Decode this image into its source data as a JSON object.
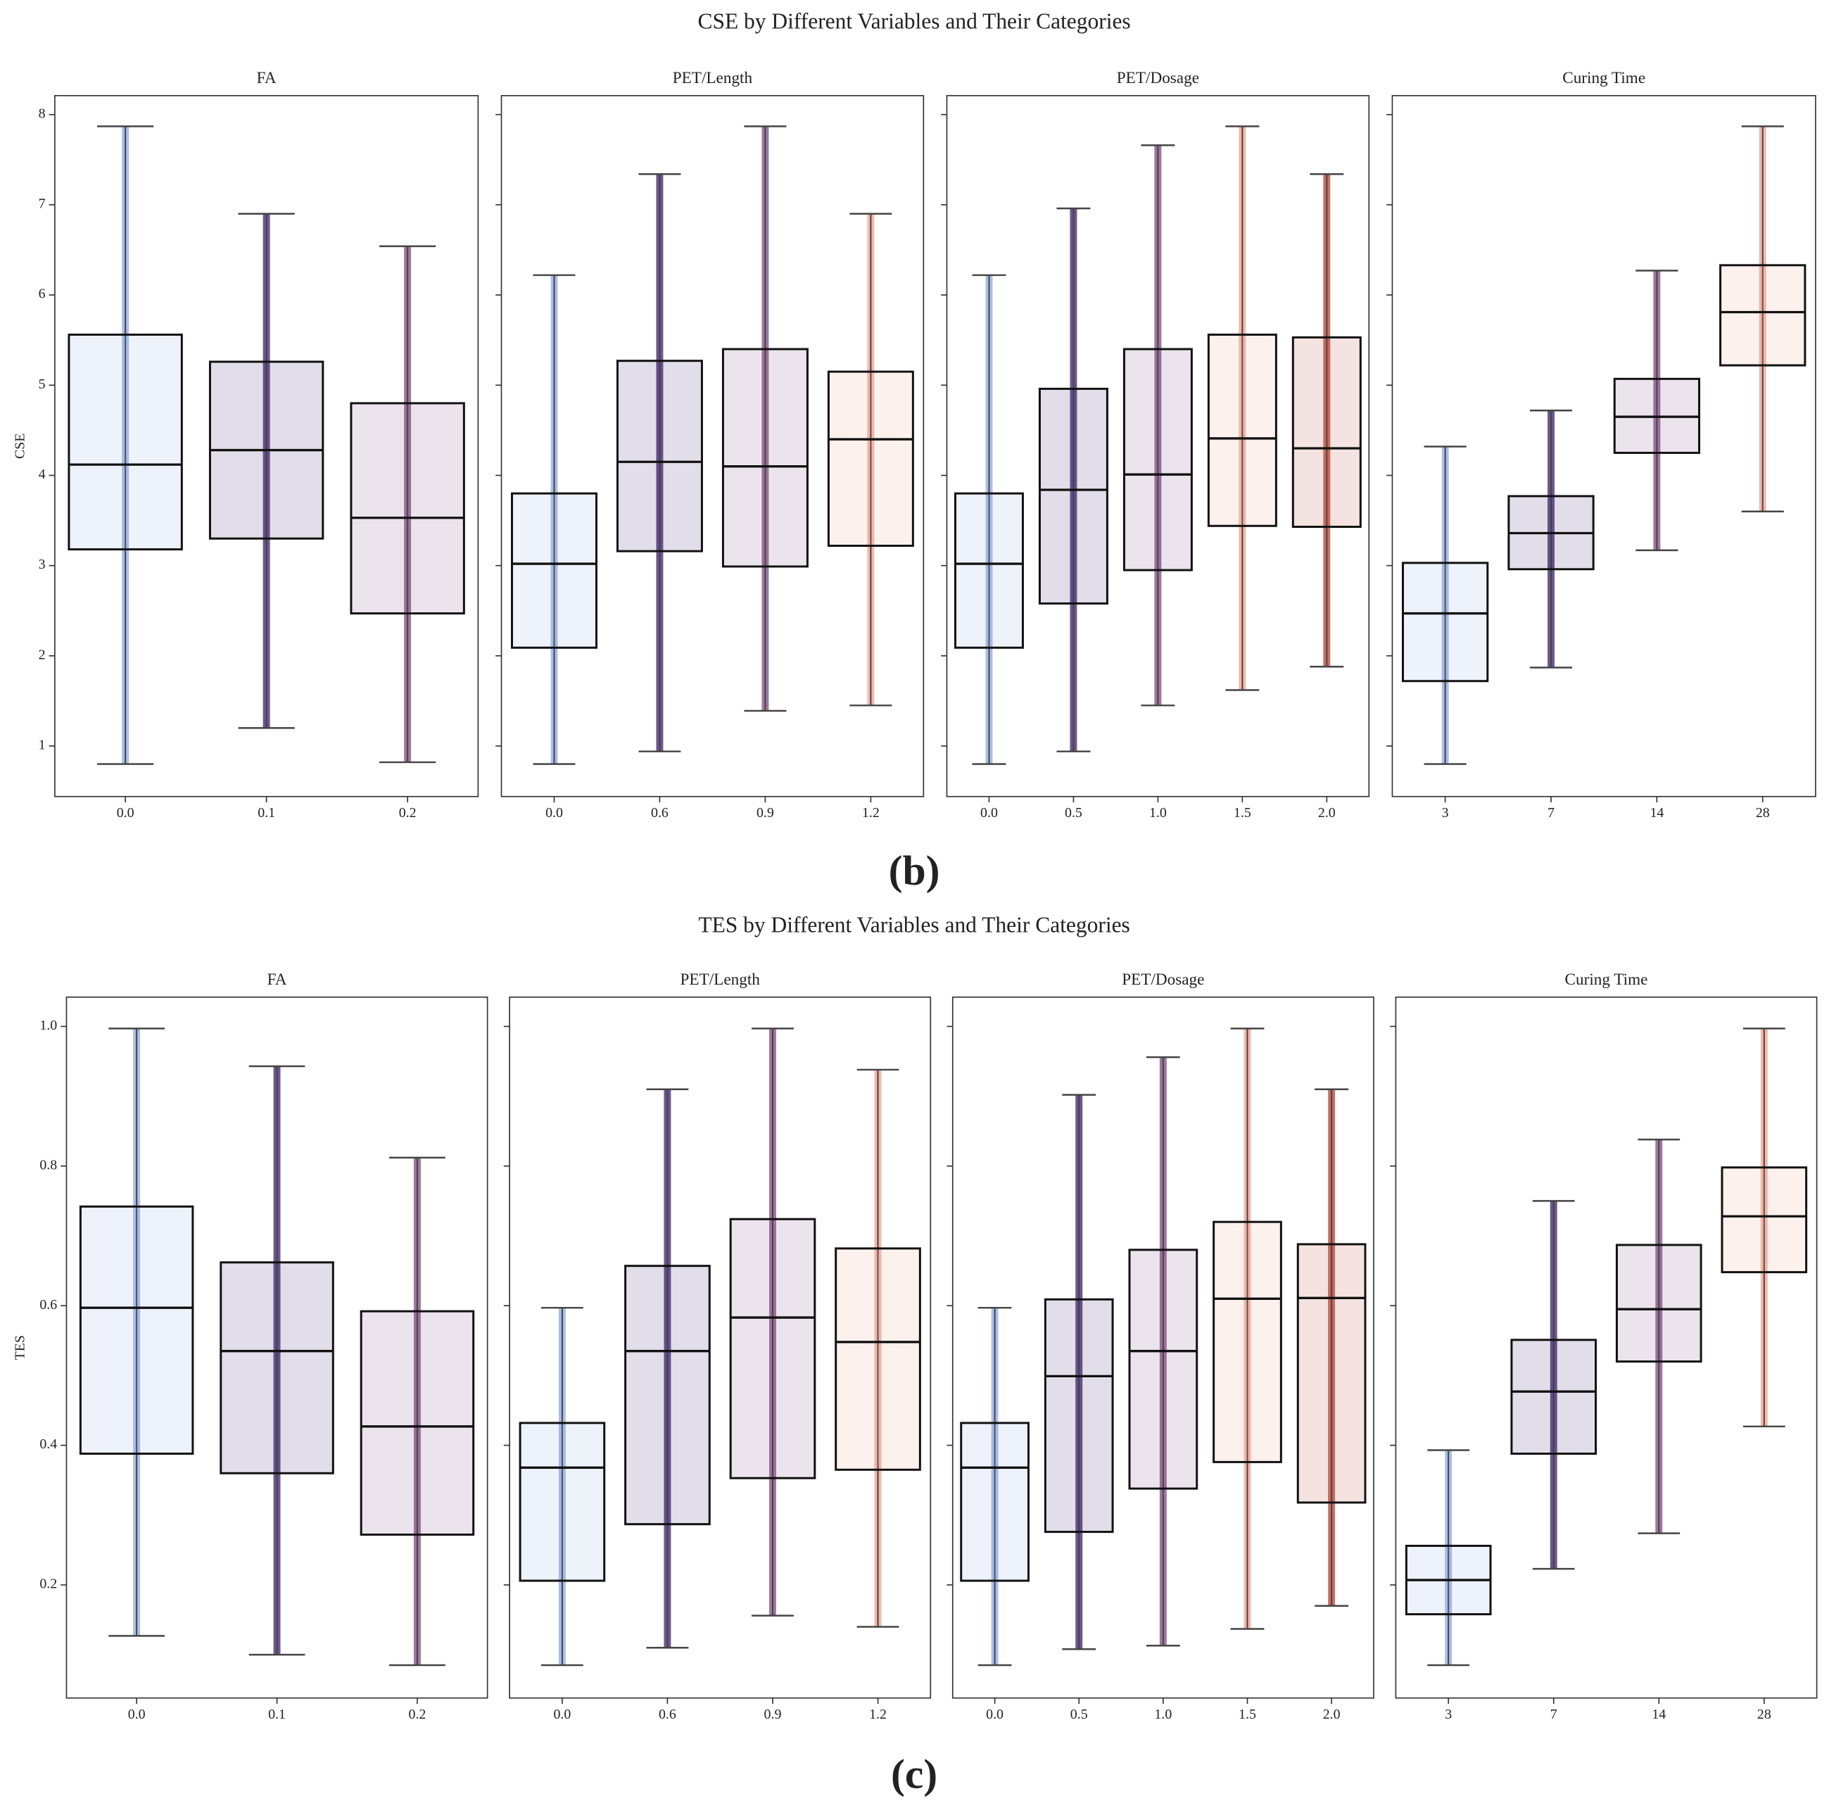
{
  "chart_data": [
    {
      "type": "box",
      "title": "CSE by Different Variables and Their Categories",
      "ylabel": "CSE",
      "caption": "(b)",
      "ylim": [
        0.44,
        8.21
      ],
      "yticks": [
        1,
        2,
        3,
        4,
        5,
        6,
        7,
        8
      ],
      "panels": [
        {
          "title": "FA",
          "categories": [
            "0.0",
            "0.1",
            "0.2"
          ],
          "colors": [
            "#8fa8e0",
            "#3b1f6b",
            "#7e4a7e"
          ],
          "boxes": [
            {
              "low": 0.8,
              "q1": 3.18,
              "median": 4.12,
              "q3": 5.56,
              "high": 7.87
            },
            {
              "low": 1.2,
              "q1": 3.3,
              "median": 4.28,
              "q3": 5.26,
              "high": 6.9
            },
            {
              "low": 0.82,
              "q1": 2.47,
              "median": 3.53,
              "q3": 4.8,
              "high": 6.54
            }
          ]
        },
        {
          "title": "PET/Length",
          "categories": [
            "0.0",
            "0.6",
            "0.9",
            "1.2"
          ],
          "colors": [
            "#8fa8e0",
            "#3b1f6b",
            "#7e4a7e",
            "#f0a090"
          ],
          "boxes": [
            {
              "low": 0.8,
              "q1": 2.09,
              "median": 3.02,
              "q3": 3.8,
              "high": 6.22
            },
            {
              "low": 0.94,
              "q1": 3.16,
              "median": 4.15,
              "q3": 5.27,
              "high": 7.34
            },
            {
              "low": 1.39,
              "q1": 2.99,
              "median": 4.1,
              "q3": 5.4,
              "high": 7.87
            },
            {
              "low": 1.45,
              "q1": 3.22,
              "median": 4.4,
              "q3": 5.15,
              "high": 6.9
            }
          ]
        },
        {
          "title": "PET/Dosage",
          "categories": [
            "0.0",
            "0.5",
            "1.0",
            "1.5",
            "2.0"
          ],
          "colors": [
            "#8fa8e0",
            "#3b1f6b",
            "#7e4a7e",
            "#f0a090",
            "#b84030"
          ],
          "boxes": [
            {
              "low": 0.8,
              "q1": 2.09,
              "median": 3.02,
              "q3": 3.8,
              "high": 6.22
            },
            {
              "low": 0.94,
              "q1": 2.58,
              "median": 3.84,
              "q3": 4.96,
              "high": 6.96
            },
            {
              "low": 1.45,
              "q1": 2.95,
              "median": 4.01,
              "q3": 5.4,
              "high": 7.66
            },
            {
              "low": 1.62,
              "q1": 3.44,
              "median": 4.41,
              "q3": 5.56,
              "high": 7.87
            },
            {
              "low": 1.88,
              "q1": 3.43,
              "median": 4.3,
              "q3": 5.53,
              "high": 7.34
            }
          ]
        },
        {
          "title": "Curing Time",
          "categories": [
            "3",
            "7",
            "14",
            "28"
          ],
          "colors": [
            "#8fa8e0",
            "#3b1f6b",
            "#7e4a7e",
            "#f0a090"
          ],
          "boxes": [
            {
              "low": 0.8,
              "q1": 1.72,
              "median": 2.47,
              "q3": 3.03,
              "high": 4.32
            },
            {
              "low": 1.87,
              "q1": 2.96,
              "median": 3.36,
              "q3": 3.77,
              "high": 4.72
            },
            {
              "low": 3.17,
              "q1": 4.25,
              "median": 4.65,
              "q3": 5.07,
              "high": 6.27
            },
            {
              "low": 3.6,
              "q1": 5.22,
              "median": 5.81,
              "q3": 6.33,
              "high": 7.87
            }
          ]
        }
      ]
    },
    {
      "type": "box",
      "title": "TES by Different Variables and Their Categories",
      "ylabel": "TES",
      "caption": "(c)",
      "ylim": [
        0.038,
        1.042
      ],
      "yticks": [
        0.2,
        0.4,
        0.6,
        0.8,
        {
          "value": 1,
          "label": "1.0"
        }
      ],
      "panels": [
        {
          "title": "FA",
          "categories": [
            "0.0",
            "0.1",
            "0.2"
          ],
          "colors": [
            "#8fa8e0",
            "#3b1f6b",
            "#7e4a7e"
          ],
          "boxes": [
            {
              "low": 0.127,
              "q1": 0.388,
              "median": 0.597,
              "q3": 0.742,
              "high": 0.997
            },
            {
              "low": 0.1,
              "q1": 0.36,
              "median": 0.535,
              "q3": 0.662,
              "high": 0.943
            },
            {
              "low": 0.085,
              "q1": 0.272,
              "median": 0.427,
              "q3": 0.592,
              "high": 0.812
            }
          ]
        },
        {
          "title": "PET/Length",
          "categories": [
            "0.0",
            "0.6",
            "0.9",
            "1.2"
          ],
          "colors": [
            "#8fa8e0",
            "#3b1f6b",
            "#7e4a7e",
            "#f0a090"
          ],
          "boxes": [
            {
              "low": 0.085,
              "q1": 0.206,
              "median": 0.368,
              "q3": 0.432,
              "high": 0.597
            },
            {
              "low": 0.11,
              "q1": 0.287,
              "median": 0.535,
              "q3": 0.657,
              "high": 0.91
            },
            {
              "low": 0.156,
              "q1": 0.353,
              "median": 0.583,
              "q3": 0.724,
              "high": 0.997
            },
            {
              "low": 0.14,
              "q1": 0.365,
              "median": 0.548,
              "q3": 0.682,
              "high": 0.938
            }
          ]
        },
        {
          "title": "PET/Dosage",
          "categories": [
            "0.0",
            "0.5",
            "1.0",
            "1.5",
            "2.0"
          ],
          "colors": [
            "#8fa8e0",
            "#3b1f6b",
            "#7e4a7e",
            "#f0a090",
            "#b84030"
          ],
          "boxes": [
            {
              "low": 0.085,
              "q1": 0.206,
              "median": 0.368,
              "q3": 0.432,
              "high": 0.597
            },
            {
              "low": 0.108,
              "q1": 0.276,
              "median": 0.499,
              "q3": 0.609,
              "high": 0.902
            },
            {
              "low": 0.113,
              "q1": 0.338,
              "median": 0.535,
              "q3": 0.68,
              "high": 0.956
            },
            {
              "low": 0.137,
              "q1": 0.376,
              "median": 0.61,
              "q3": 0.72,
              "high": 0.997
            },
            {
              "low": 0.17,
              "q1": 0.318,
              "median": 0.611,
              "q3": 0.688,
              "high": 0.91
            }
          ]
        },
        {
          "title": "Curing Time",
          "categories": [
            "3",
            "7",
            "14",
            "28"
          ],
          "colors": [
            "#8fa8e0",
            "#3b1f6b",
            "#7e4a7e",
            "#f0a090"
          ],
          "boxes": [
            {
              "low": 0.085,
              "q1": 0.158,
              "median": 0.207,
              "q3": 0.256,
              "high": 0.393
            },
            {
              "low": 0.223,
              "q1": 0.388,
              "median": 0.477,
              "q3": 0.551,
              "high": 0.75
            },
            {
              "low": 0.274,
              "q1": 0.52,
              "median": 0.595,
              "q3": 0.687,
              "high": 0.838
            },
            {
              "low": 0.427,
              "q1": 0.648,
              "median": 0.728,
              "q3": 0.798,
              "high": 0.997
            }
          ]
        }
      ]
    }
  ]
}
